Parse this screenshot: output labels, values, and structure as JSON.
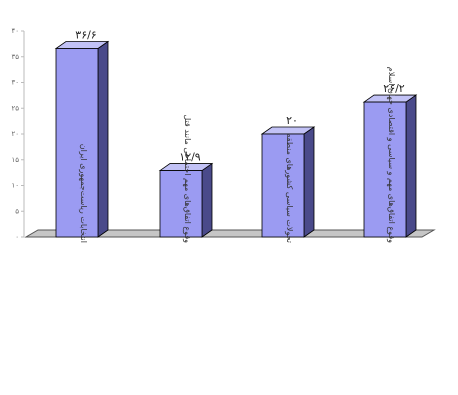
{
  "chart_data": {
    "type": "bar",
    "style": "3d",
    "categories": [
      "انتخابات ریاست‌جمهوری ایران",
      "وقوع اتفاق‌های مهم اجتماعی مانند قتل",
      "تحولات سیاسی کشورهای منطقه",
      "وقوع اتفاق‌های مهم و سیاسی و اقتصادی جهان اسلام"
    ],
    "value_labels": [
      "۳۶/۶",
      "۱۲/۹",
      "۲۰",
      "۲۶/۲"
    ],
    "values": [
      36.6,
      12.9,
      20,
      26.2
    ],
    "ylim": [
      0,
      40
    ],
    "yticks": [
      "۰",
      "۵",
      "۱۰",
      "۱۵",
      "۲۰",
      "۲۵",
      "۳۰",
      "۳۵",
      "۴۰"
    ],
    "colors": {
      "front": "#9b9bf2",
      "side": "#4a4a8a",
      "top": "#c2c2f6",
      "floor": "#c6c6c6",
      "outline": "#000000"
    },
    "grid": false,
    "legend": "none"
  }
}
